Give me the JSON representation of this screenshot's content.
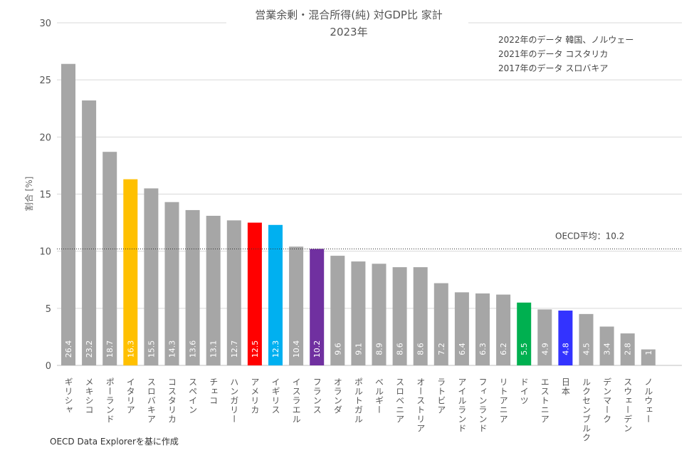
{
  "chart_data": {
    "type": "bar",
    "title": "営業余剰・混合所得(純) 対GDP比 家計",
    "subtitle": "2023年",
    "ylabel": "割合 [%]",
    "xlabel": "",
    "ylim": [
      0,
      30
    ],
    "yticks": [
      0,
      5,
      10,
      15,
      20,
      25,
      30
    ],
    "grid": true,
    "categories": [
      "ギリシャ",
      "メキシコ",
      "ポーランド",
      "イタリア",
      "スロバキア",
      "コスタリカ",
      "スペイン",
      "チェコ",
      "ハンガリー",
      "アメリカ",
      "イギリス",
      "イスラエル",
      "フランス",
      "オランダ",
      "ポルトガル",
      "ベルギー",
      "スロベニア",
      "オーストリア",
      "ラトビア",
      "アイルランド",
      "フィンランド",
      "リトアニア",
      "ドイツ",
      "エストニア",
      "日本",
      "ルクセンブルク",
      "デンマーク",
      "スウェーデン",
      "ノルウェー"
    ],
    "values": [
      26.4,
      23.2,
      18.7,
      16.3,
      15.5,
      14.3,
      13.6,
      13.1,
      12.7,
      12.5,
      12.3,
      10.4,
      10.2,
      9.6,
      9.1,
      8.9,
      8.6,
      8.6,
      7.2,
      6.4,
      6.3,
      6.2,
      5.5,
      4.9,
      4.8,
      4.5,
      3.4,
      2.8,
      1.4
    ],
    "labels": [
      "26.4",
      "23.2",
      "18.7",
      "16.3",
      "15.5",
      "14.3",
      "13.6",
      "13.1",
      "12.7",
      "12.5",
      "12.3",
      "10.4",
      "10.2",
      "9.6",
      "9.1",
      "8.9",
      "8.6",
      "8.6",
      "7.2",
      "6.4",
      "6.3",
      "6.2",
      "5.5",
      "4.9",
      "4.8",
      "4.5",
      "3.4",
      "2.8",
      "1.4"
    ],
    "colors": [
      "#a6a6a6",
      "#a6a6a6",
      "#a6a6a6",
      "#ffc000",
      "#a6a6a6",
      "#a6a6a6",
      "#a6a6a6",
      "#a6a6a6",
      "#a6a6a6",
      "#ff0000",
      "#00b0f0",
      "#a6a6a6",
      "#7030a0",
      "#a6a6a6",
      "#a6a6a6",
      "#a6a6a6",
      "#a6a6a6",
      "#a6a6a6",
      "#a6a6a6",
      "#a6a6a6",
      "#a6a6a6",
      "#a6a6a6",
      "#00b050",
      "#a6a6a6",
      "#3333ff",
      "#a6a6a6",
      "#a6a6a6",
      "#a6a6a6",
      "#a6a6a6"
    ],
    "reference_line": {
      "value": 10.2,
      "label": "OECD平均：10.2"
    },
    "annotations": [
      "2022年のデータ 韓国、ノルウェー",
      "2021年のデータ コスタリカ",
      "2017年のデータ スロバキア"
    ],
    "source": "OECD Data Explorerを基に作成"
  }
}
